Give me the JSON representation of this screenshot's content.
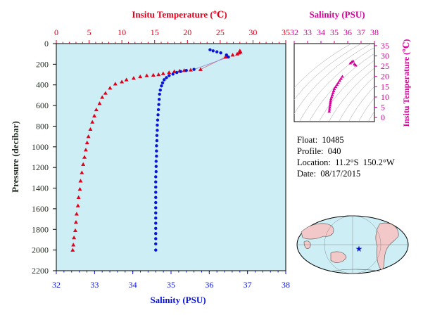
{
  "main_chart": {
    "top_axis_title": "Insitu Temperature (℃)",
    "left_axis_title": "Pressure (decibar)",
    "bottom_axis_title": "Salinity (PSU)",
    "temp_ticks": [
      "0",
      "5",
      "10",
      "15",
      "20",
      "25",
      "30",
      "35"
    ],
    "pressure_ticks": [
      "0",
      "200",
      "400",
      "600",
      "800",
      "1000",
      "1200",
      "1400",
      "1600",
      "1800",
      "2000",
      "2200"
    ],
    "salinity_ticks": [
      "32",
      "33",
      "34",
      "35",
      "36",
      "37",
      "38"
    ],
    "colors": {
      "temperature": "#e0001b",
      "salinity": "#0a14d8",
      "plot_bg": "#cdeef5"
    }
  },
  "ts_chart": {
    "top_axis_title": "Salinity (PSU)",
    "right_axis_title": "Insitu Temperature (℃)",
    "salinity_ticks": [
      "32",
      "33",
      "34",
      "35",
      "36",
      "37",
      "38"
    ],
    "temp_ticks": [
      "0",
      "5",
      "10",
      "15",
      "20",
      "25",
      "30",
      "35"
    ],
    "color": "#d6009a"
  },
  "info": {
    "float_label": "Float:",
    "float_value": "10485",
    "profile_label": "Profile:",
    "profile_value": "040",
    "location_label": "Location:",
    "location_value": "11.2°S  150.2°W",
    "date_label": "Date:",
    "date_value": "08/17/2015"
  },
  "chart_data": [
    {
      "type": "scatter",
      "title": "",
      "x_axis_top": {
        "label": "Insitu Temperature (℃)",
        "range": [
          0,
          35
        ]
      },
      "x_axis_bottom": {
        "label": "Salinity (PSU)",
        "range": [
          32,
          38
        ]
      },
      "y_axis": {
        "label": "Pressure (decibar)",
        "range": [
          0,
          2200
        ],
        "inverted": true
      },
      "grid": false,
      "series": [
        {
          "axis": "temperature",
          "marker": "triangle",
          "color": "#e0001b",
          "points": [
            [
              28.0,
              70
            ],
            [
              28.1,
              80
            ],
            [
              27.9,
              90
            ],
            [
              27.6,
              100
            ],
            [
              26.9,
              110
            ],
            [
              26.0,
              120
            ],
            [
              25.8,
              130
            ],
            [
              22.0,
              250
            ],
            [
              20.5,
              255
            ],
            [
              19.5,
              260
            ],
            [
              18.8,
              265
            ],
            [
              18.0,
              270
            ],
            [
              17.2,
              280
            ],
            [
              16.3,
              290
            ],
            [
              15.6,
              300
            ],
            [
              14.8,
              305
            ],
            [
              13.8,
              310
            ],
            [
              12.8,
              320
            ],
            [
              11.8,
              335
            ],
            [
              10.7,
              350
            ],
            [
              10.0,
              370
            ],
            [
              9.0,
              390
            ],
            [
              8.2,
              430
            ],
            [
              7.5,
              480
            ],
            [
              7.0,
              520
            ],
            [
              6.6,
              580
            ],
            [
              6.1,
              640
            ],
            [
              5.8,
              700
            ],
            [
              5.5,
              760
            ],
            [
              5.2,
              830
            ],
            [
              4.9,
              900
            ],
            [
              4.7,
              960
            ],
            [
              4.5,
              1030
            ],
            [
              4.3,
              1100
            ],
            [
              4.1,
              1170
            ],
            [
              3.9,
              1250
            ],
            [
              3.7,
              1330
            ],
            [
              3.6,
              1410
            ],
            [
              3.4,
              1490
            ],
            [
              3.3,
              1570
            ],
            [
              3.1,
              1650
            ],
            [
              3.0,
              1730
            ],
            [
              2.9,
              1810
            ],
            [
              2.7,
              1880
            ],
            [
              2.6,
              1950
            ],
            [
              2.5,
              2000
            ]
          ]
        },
        {
          "axis": "salinity",
          "marker": "circle",
          "color": "#0a14d8",
          "points": [
            [
              36.02,
              60
            ],
            [
              36.1,
              70
            ],
            [
              36.2,
              80
            ],
            [
              36.3,
              90
            ],
            [
              36.45,
              110
            ],
            [
              36.5,
              130
            ],
            [
              35.6,
              250
            ],
            [
              35.4,
              260
            ],
            [
              35.25,
              270
            ],
            [
              35.15,
              280
            ],
            [
              35.05,
              295
            ],
            [
              34.95,
              310
            ],
            [
              34.88,
              330
            ],
            [
              34.82,
              350
            ],
            [
              34.78,
              380
            ],
            [
              34.75,
              410
            ],
            [
              34.72,
              450
            ],
            [
              34.7,
              490
            ],
            [
              34.69,
              540
            ],
            [
              34.68,
              590
            ],
            [
              34.67,
              640
            ],
            [
              34.66,
              690
            ],
            [
              34.65,
              740
            ],
            [
              34.64,
              790
            ],
            [
              34.64,
              840
            ],
            [
              34.63,
              890
            ],
            [
              34.63,
              940
            ],
            [
              34.62,
              990
            ],
            [
              34.62,
              1040
            ],
            [
              34.62,
              1090
            ],
            [
              34.61,
              1140
            ],
            [
              34.61,
              1190
            ],
            [
              34.61,
              1240
            ],
            [
              34.6,
              1290
            ],
            [
              34.6,
              1340
            ],
            [
              34.6,
              1390
            ],
            [
              34.6,
              1440
            ],
            [
              34.6,
              1490
            ],
            [
              34.6,
              1540
            ],
            [
              34.6,
              1590
            ],
            [
              34.6,
              1640
            ],
            [
              34.6,
              1690
            ],
            [
              34.6,
              1740
            ],
            [
              34.6,
              1790
            ],
            [
              34.6,
              1840
            ],
            [
              34.6,
              1890
            ],
            [
              34.6,
              1940
            ],
            [
              34.6,
              2000
            ]
          ]
        }
      ]
    },
    {
      "type": "scatter",
      "title": "",
      "x_axis": {
        "label": "Salinity (PSU)",
        "range": [
          32,
          38
        ]
      },
      "y_axis": {
        "label": "Insitu Temperature (℃)",
        "range": [
          -2,
          36
        ]
      },
      "grid": false,
      "series": [
        {
          "color": "#d6009a",
          "marker": "triangle",
          "points": [
            [
              36.4,
              27.5
            ],
            [
              36.3,
              27.0
            ],
            [
              36.2,
              26.5
            ],
            [
              36.5,
              26.0
            ],
            [
              36.6,
              25.5
            ],
            [
              35.6,
              20.0
            ],
            [
              35.5,
              19.0
            ],
            [
              35.4,
              18.0
            ],
            [
              35.3,
              17.0
            ],
            [
              35.2,
              16.0
            ],
            [
              35.1,
              15.0
            ],
            [
              35.0,
              14.0
            ],
            [
              34.95,
              13.0
            ],
            [
              34.9,
              12.0
            ],
            [
              34.85,
              11.0
            ],
            [
              34.8,
              10.0
            ],
            [
              34.75,
              9.0
            ],
            [
              34.72,
              8.0
            ],
            [
              34.7,
              7.0
            ],
            [
              34.68,
              6.0
            ],
            [
              34.66,
              5.0
            ],
            [
              34.64,
              4.0
            ],
            [
              34.62,
              3.0
            ]
          ]
        }
      ]
    }
  ]
}
